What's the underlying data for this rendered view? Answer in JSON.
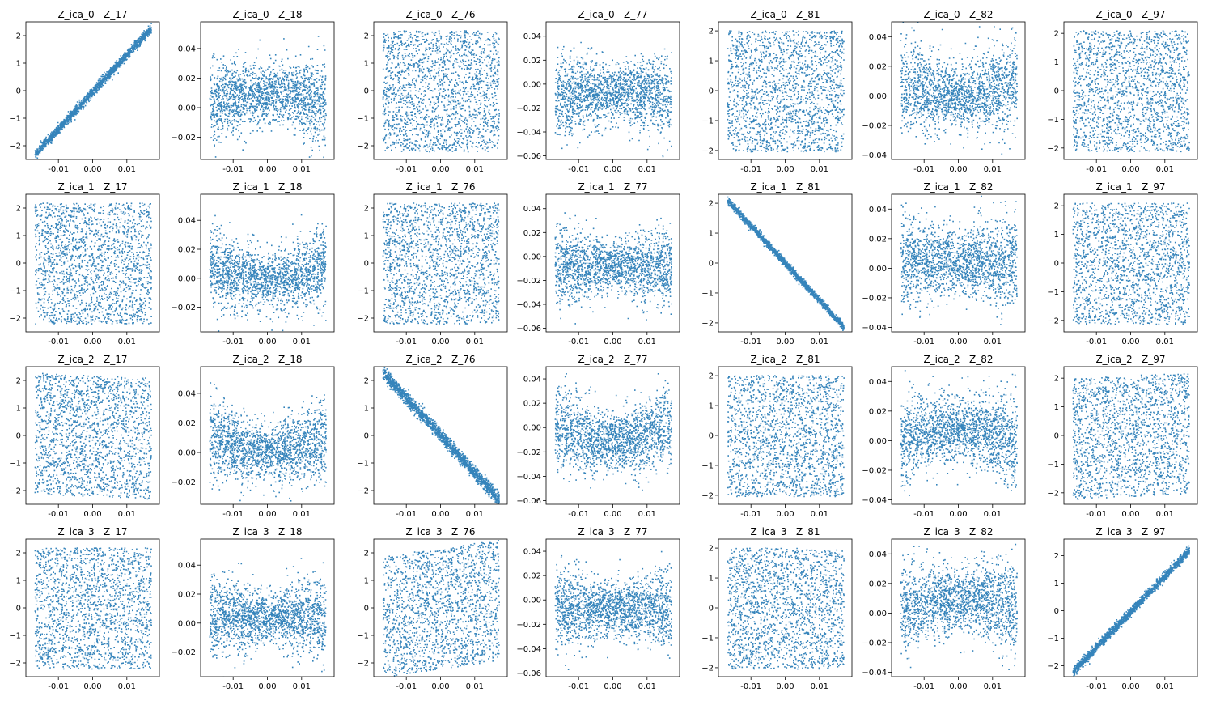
{
  "figure": {
    "layout": {
      "rows": 4,
      "cols": 7
    },
    "row_labels": [
      "Z_ica_0",
      "Z_ica_1",
      "Z_ica_2",
      "Z_ica_3"
    ],
    "col_labels": [
      "Z_17",
      "Z_18",
      "Z_76",
      "Z_77",
      "Z_81",
      "Z_82",
      "Z_97"
    ]
  },
  "chart_data": {
    "type": "scatter",
    "marker_color": "#1f77b4",
    "x_ticks": [
      "-0.01",
      "0.00",
      "0.01"
    ],
    "x_tick_values": [
      -0.01,
      0.0,
      0.01
    ],
    "xlim": [
      -0.0195,
      0.0195
    ],
    "point_count_per_panel": 1800,
    "panels": [
      {
        "row": 0,
        "col": 0,
        "title": "Z_ica_0   Z_17",
        "ylim": [
          -2.5,
          2.5
        ],
        "yticks": [
          -2,
          -1,
          0,
          1,
          2
        ],
        "ytick_labels": [
          "−2",
          "−1",
          "0",
          "1",
          "2"
        ],
        "pattern": "linear",
        "slope": 1,
        "spread": 0.08
      },
      {
        "row": 0,
        "col": 1,
        "title": "Z_ica_0   Z_18",
        "ylim": [
          -0.035,
          0.058
        ],
        "yticks": [
          -0.02,
          0.0,
          0.02,
          0.04
        ],
        "ytick_labels": [
          "−0.02",
          "0.00",
          "0.02",
          "0.04"
        ],
        "pattern": "noise",
        "center": 0.006,
        "spread": 0.009,
        "curve": "hump"
      },
      {
        "row": 0,
        "col": 2,
        "title": "Z_ica_0   Z_76",
        "ylim": [
          -2.5,
          2.5
        ],
        "yticks": [
          -2,
          -1,
          0,
          1,
          2
        ],
        "ytick_labels": [
          "−2",
          "−1",
          "0",
          "1",
          "2"
        ],
        "pattern": "uniform",
        "tilt": 0
      },
      {
        "row": 0,
        "col": 3,
        "title": "Z_ica_0   Z_77",
        "ylim": [
          -0.063,
          0.052
        ],
        "yticks": [
          -0.06,
          -0.04,
          -0.02,
          0.0,
          0.02,
          0.04
        ],
        "ytick_labels": [
          "−0.06",
          "−0.04",
          "−0.02",
          "0.00",
          "0.02",
          "0.04"
        ],
        "pattern": "noise",
        "center": -0.006,
        "spread": 0.011,
        "curve": "dip"
      },
      {
        "row": 0,
        "col": 4,
        "title": "Z_ica_0   Z_81",
        "ylim": [
          -2.3,
          2.3
        ],
        "yticks": [
          -2,
          -1,
          0,
          1,
          2
        ],
        "ytick_labels": [
          "−2",
          "−1",
          "0",
          "1",
          "2"
        ],
        "pattern": "uniform",
        "tilt": 0
      },
      {
        "row": 0,
        "col": 5,
        "title": "Z_ica_0   Z_82",
        "ylim": [
          -0.043,
          0.05
        ],
        "yticks": [
          -0.04,
          -0.02,
          0.0,
          0.02,
          0.04
        ],
        "ytick_labels": [
          "−0.04",
          "−0.02",
          "0.00",
          "0.02",
          "0.04"
        ],
        "pattern": "noise",
        "center": 0.004,
        "spread": 0.01,
        "curve": "vshape"
      },
      {
        "row": 0,
        "col": 6,
        "title": "Z_ica_0   Z_97",
        "ylim": [
          -2.4,
          2.4
        ],
        "yticks": [
          -2,
          -1,
          0,
          1,
          2
        ],
        "ytick_labels": [
          "−2",
          "−1",
          "0",
          "1",
          "2"
        ],
        "pattern": "uniform",
        "tilt": 0
      },
      {
        "row": 1,
        "col": 0,
        "title": "Z_ica_1   Z_17",
        "ylim": [
          -2.5,
          2.5
        ],
        "yticks": [
          -2,
          -1,
          0,
          1,
          2
        ],
        "ytick_labels": [
          "−2",
          "−1",
          "0",
          "1",
          "2"
        ],
        "pattern": "uniform",
        "tilt": 0
      },
      {
        "row": 1,
        "col": 1,
        "title": "Z_ica_1   Z_18",
        "ylim": [
          -0.037,
          0.058
        ],
        "yticks": [
          -0.02,
          0.0,
          0.02,
          0.04
        ],
        "ytick_labels": [
          "−0.02",
          "0.00",
          "0.02",
          "0.04"
        ],
        "pattern": "noise",
        "center": 0.003,
        "spread": 0.009,
        "curve": "vshape"
      },
      {
        "row": 1,
        "col": 2,
        "title": "Z_ica_1   Z_76",
        "ylim": [
          -2.5,
          2.5
        ],
        "yticks": [
          -2,
          -1,
          0,
          1,
          2
        ],
        "ytick_labels": [
          "−2",
          "−1",
          "0",
          "1",
          "2"
        ],
        "pattern": "uniform",
        "tilt": 0
      },
      {
        "row": 1,
        "col": 3,
        "title": "Z_ica_1   Z_77",
        "ylim": [
          -0.063,
          0.052
        ],
        "yticks": [
          -0.06,
          -0.04,
          -0.02,
          0.0,
          0.02,
          0.04
        ],
        "ytick_labels": [
          "−0.06",
          "−0.04",
          "−0.02",
          "0.00",
          "0.02",
          "0.04"
        ],
        "pattern": "noise",
        "center": -0.008,
        "spread": 0.011,
        "curve": "flat"
      },
      {
        "row": 1,
        "col": 4,
        "title": "Z_ica_1   Z_81",
        "ylim": [
          -2.3,
          2.3
        ],
        "yticks": [
          -2,
          -1,
          0,
          1,
          2
        ],
        "ytick_labels": [
          "−2",
          "−1",
          "0",
          "1",
          "2"
        ],
        "pattern": "linear",
        "slope": -1,
        "spread": 0.06
      },
      {
        "row": 1,
        "col": 5,
        "title": "Z_ica_1   Z_82",
        "ylim": [
          -0.043,
          0.05
        ],
        "yticks": [
          -0.04,
          -0.02,
          0.0,
          0.02,
          0.04
        ],
        "ytick_labels": [
          "−0.04",
          "−0.02",
          "0.00",
          "0.02",
          "0.04"
        ],
        "pattern": "noise",
        "center": 0.004,
        "spread": 0.01,
        "curve": "flat"
      },
      {
        "row": 1,
        "col": 6,
        "title": "Z_ica_1   Z_97",
        "ylim": [
          -2.4,
          2.4
        ],
        "yticks": [
          -2,
          -1,
          0,
          1,
          2
        ],
        "ytick_labels": [
          "−2",
          "−1",
          "0",
          "1",
          "2"
        ],
        "pattern": "uniform",
        "tilt": 0
      },
      {
        "row": 2,
        "col": 0,
        "title": "Z_ica_2   Z_17",
        "ylim": [
          -2.5,
          2.5
        ],
        "yticks": [
          -2,
          -1,
          0,
          1,
          2
        ],
        "ytick_labels": [
          "−2",
          "−1",
          "0",
          "1",
          "2"
        ],
        "pattern": "uniform",
        "tilt": -0.1
      },
      {
        "row": 2,
        "col": 1,
        "title": "Z_ica_2   Z_18",
        "ylim": [
          -0.035,
          0.058
        ],
        "yticks": [
          -0.02,
          0.0,
          0.02,
          0.04
        ],
        "ytick_labels": [
          "−0.02",
          "0.00",
          "0.02",
          "0.04"
        ],
        "pattern": "noise",
        "center": 0.004,
        "spread": 0.009,
        "curve": "vshape"
      },
      {
        "row": 2,
        "col": 2,
        "title": "Z_ica_2   Z_76",
        "ylim": [
          -2.5,
          2.5
        ],
        "yticks": [
          -2,
          -1,
          0,
          1,
          2
        ],
        "ytick_labels": [
          "−2",
          "−1",
          "0",
          "1",
          "2"
        ],
        "pattern": "linear",
        "slope": -1,
        "spread": 0.12
      },
      {
        "row": 2,
        "col": 3,
        "title": "Z_ica_2   Z_77",
        "ylim": [
          -0.063,
          0.05
        ],
        "yticks": [
          -0.06,
          -0.04,
          -0.02,
          0.0,
          0.02,
          0.04
        ],
        "ytick_labels": [
          "−0.06",
          "−0.04",
          "−0.02",
          "0.00",
          "0.02",
          "0.04"
        ],
        "pattern": "noise",
        "center": -0.006,
        "spread": 0.011,
        "curve": "vshape"
      },
      {
        "row": 2,
        "col": 4,
        "title": "Z_ica_2   Z_81",
        "ylim": [
          -2.3,
          2.3
        ],
        "yticks": [
          -2,
          -1,
          0,
          1,
          2
        ],
        "ytick_labels": [
          "−2",
          "−1",
          "0",
          "1",
          "2"
        ],
        "pattern": "uniform",
        "tilt": 0
      },
      {
        "row": 2,
        "col": 5,
        "title": "Z_ica_2   Z_82",
        "ylim": [
          -0.043,
          0.05
        ],
        "yticks": [
          -0.04,
          -0.02,
          0.0,
          0.02,
          0.04
        ],
        "ytick_labels": [
          "−0.04",
          "−0.02",
          "0.00",
          "0.02",
          "0.04"
        ],
        "pattern": "noise",
        "center": 0.004,
        "spread": 0.01,
        "curve": "hump"
      },
      {
        "row": 2,
        "col": 6,
        "title": "Z_ica_2   Z_97",
        "ylim": [
          -2.4,
          2.4
        ],
        "yticks": [
          -2,
          -1,
          0,
          1,
          2
        ],
        "ytick_labels": [
          "−2",
          "−1",
          "0",
          "1",
          "2"
        ],
        "pattern": "uniform",
        "tilt": 0.1
      },
      {
        "row": 3,
        "col": 0,
        "title": "Z_ica_3   Z_17",
        "ylim": [
          -2.5,
          2.5
        ],
        "yticks": [
          -2,
          -1,
          0,
          1,
          2
        ],
        "ytick_labels": [
          "−2",
          "−1",
          "0",
          "1",
          "2"
        ],
        "pattern": "uniform",
        "tilt": 0
      },
      {
        "row": 3,
        "col": 1,
        "title": "Z_ica_3   Z_18",
        "ylim": [
          -0.037,
          0.058
        ],
        "yticks": [
          -0.02,
          0.0,
          0.02,
          0.04
        ],
        "ytick_labels": [
          "−0.02",
          "0.00",
          "0.02",
          "0.04"
        ],
        "pattern": "noise",
        "center": 0.004,
        "spread": 0.009,
        "curve": "flat"
      },
      {
        "row": 3,
        "col": 2,
        "title": "Z_ica_3   Z_76",
        "ylim": [
          -2.5,
          2.5
        ],
        "yticks": [
          -2,
          -1,
          0,
          1,
          2
        ],
        "ytick_labels": [
          "−2",
          "−1",
          "0",
          "1",
          "2"
        ],
        "pattern": "uniform",
        "tilt": 0.3
      },
      {
        "row": 3,
        "col": 3,
        "title": "Z_ica_3   Z_77",
        "ylim": [
          -0.063,
          0.05
        ],
        "yticks": [
          -0.06,
          -0.04,
          -0.02,
          0.0,
          0.02,
          0.04
        ],
        "ytick_labels": [
          "−0.06",
          "−0.04",
          "−0.02",
          "0.00",
          "0.02",
          "0.04"
        ],
        "pattern": "noise",
        "center": -0.007,
        "spread": 0.011,
        "curve": "flat"
      },
      {
        "row": 3,
        "col": 4,
        "title": "Z_ica_3   Z_81",
        "ylim": [
          -2.3,
          2.3
        ],
        "yticks": [
          -2,
          -1,
          0,
          1,
          2
        ],
        "ytick_labels": [
          "−2",
          "−1",
          "0",
          "1",
          "2"
        ],
        "pattern": "uniform",
        "tilt": 0
      },
      {
        "row": 3,
        "col": 5,
        "title": "Z_ica_3   Z_82",
        "ylim": [
          -0.043,
          0.05
        ],
        "yticks": [
          -0.04,
          -0.02,
          0.0,
          0.02,
          0.04
        ],
        "ytick_labels": [
          "−0.04",
          "−0.02",
          "0.00",
          "0.02",
          "0.04"
        ],
        "pattern": "noise",
        "center": 0.006,
        "spread": 0.01,
        "curve": "hump"
      },
      {
        "row": 3,
        "col": 6,
        "title": "Z_ica_3   Z_97",
        "ylim": [
          -2.4,
          2.6
        ],
        "yticks": [
          -2,
          -1,
          0,
          1,
          2
        ],
        "ytick_labels": [
          "−2",
          "−1",
          "0",
          "1",
          "2"
        ],
        "pattern": "linear",
        "slope": 1,
        "spread": 0.08
      }
    ]
  }
}
